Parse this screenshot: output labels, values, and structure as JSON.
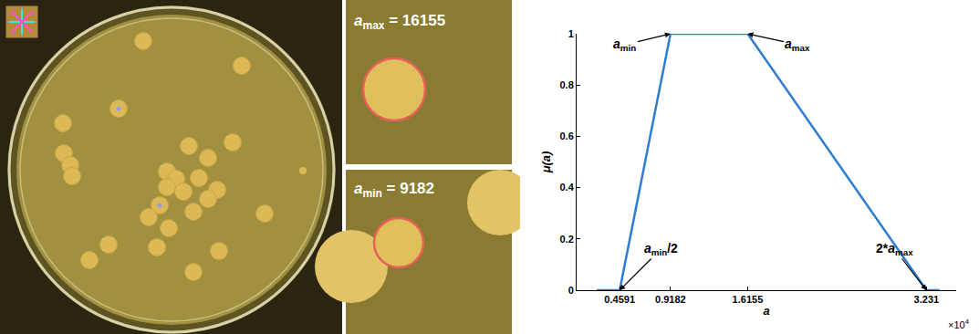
{
  "panels": {
    "zoom_top": {
      "symbol": "a",
      "subscript": "max",
      "relation": "=",
      "value": 16155
    },
    "zoom_bottom": {
      "symbol": "a",
      "subscript": "min",
      "relation": "=",
      "value": 9182
    }
  },
  "chart_data": {
    "type": "line",
    "x": [
      0.25,
      0.4591,
      0.9182,
      1.6155,
      3.231,
      3.35
    ],
    "values": [
      0,
      0,
      1,
      1,
      0,
      0
    ],
    "color": "#2e7dd1",
    "xlabel": "a",
    "ylabel": "μ(a)",
    "x_exponent_label": {
      "base": "×10",
      "exponent": 4
    },
    "xlim": [
      0.07,
      3.5
    ],
    "ylim": [
      0,
      1
    ],
    "xticks": [
      0.4591,
      0.9182,
      1.6155,
      3.231
    ],
    "yticks": [
      0,
      0.2,
      0.4,
      0.6,
      0.8,
      1
    ],
    "grid": false,
    "annotations": [
      {
        "symbol": "a",
        "subscript": "min",
        "x": 0.9182,
        "y": 1
      },
      {
        "symbol": "a",
        "subscript": "max",
        "x": 1.6155,
        "y": 1
      },
      {
        "symbol": "a",
        "subscript": "min",
        "suffix": "/2",
        "x": 0.4591,
        "y": 0
      },
      {
        "prefix": "2*",
        "symbol": "a",
        "subscript": "max",
        "x": 3.231,
        "y": 0
      }
    ]
  }
}
